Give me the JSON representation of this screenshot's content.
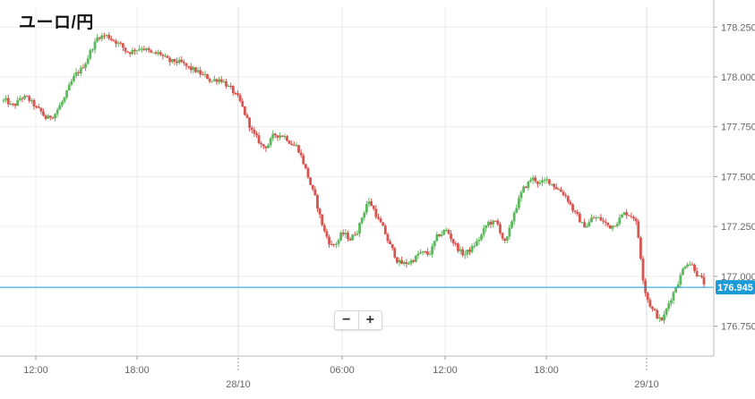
{
  "title": "ユーロ/円",
  "zoom": {
    "minus": "−",
    "plus": "+"
  },
  "colors": {
    "up": "#5cb85c",
    "down": "#d9534f",
    "priceLine": "#1a9bd7",
    "grid": "#ececec",
    "axis": "#666666"
  },
  "chart_data": {
    "type": "candlestick",
    "title": "ユーロ/円",
    "y_axis": {
      "side": "right",
      "min": 176.6,
      "max": 178.35,
      "ticks": [
        "178.250",
        "178.000",
        "177.750",
        "177.500",
        "177.250",
        "177.000",
        "176.750"
      ]
    },
    "x_axis": {
      "ticks": [
        "12:00",
        "18:00",
        "06:00",
        "12:00",
        "18:00"
      ],
      "date_labels": [
        "28/10",
        "29/10"
      ]
    },
    "grid": true,
    "current_price": 176.945,
    "current_price_label": "176.945",
    "close_path": [
      177.88,
      177.84,
      177.91,
      177.87,
      177.82,
      177.78,
      177.84,
      177.9,
      178.0,
      178.05,
      178.15,
      178.22,
      178.2,
      178.18,
      178.12,
      178.14,
      178.16,
      178.1,
      178.12,
      178.06,
      178.08,
      178.04,
      178.03,
      178.0,
      177.98,
      178.0,
      177.94,
      177.88,
      177.78,
      177.68,
      177.64,
      177.7,
      177.72,
      177.68,
      177.64,
      177.5,
      177.36,
      177.2,
      177.14,
      177.22,
      177.18,
      177.26,
      177.4,
      177.3,
      177.2,
      177.1,
      177.05,
      177.08,
      177.12,
      177.1,
      177.2,
      177.24,
      177.16,
      177.1,
      177.14,
      177.2,
      177.28,
      177.26,
      177.14,
      177.36,
      177.44,
      177.5,
      177.46,
      177.48,
      177.44,
      177.4,
      177.3,
      177.24,
      177.3,
      177.28,
      177.24,
      177.3,
      177.32,
      177.3,
      176.9,
      176.82,
      176.76,
      176.9,
      177.0,
      177.1,
      177.02,
      176.945
    ],
    "intervals": 300
  }
}
